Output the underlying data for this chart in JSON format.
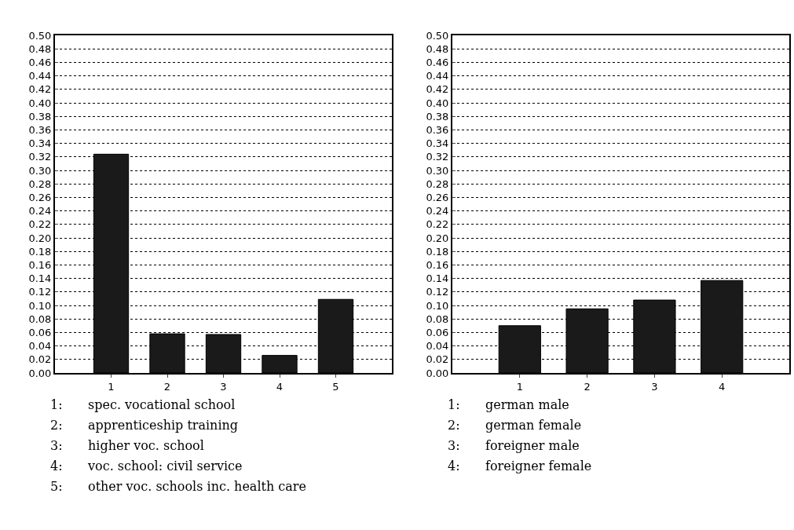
{
  "chart_data": [
    {
      "type": "bar",
      "categories": [
        "1",
        "2",
        "3",
        "4",
        "5"
      ],
      "values": [
        0.324,
        0.058,
        0.057,
        0.026,
        0.109
      ],
      "color": "#1a1a1a",
      "ylim": [
        0,
        0.5
      ],
      "yticks": [
        {
          "value": 0,
          "label": "0.00"
        },
        {
          "value": 0.02,
          "label": "0.02"
        },
        {
          "value": 0.04,
          "label": "0.04"
        },
        {
          "value": 0.06,
          "label": "0.06"
        },
        {
          "value": 0.08,
          "label": "0.08"
        },
        {
          "value": 0.1,
          "label": "0.10"
        },
        {
          "value": 0.12,
          "label": "0.12"
        },
        {
          "value": 0.14,
          "label": "0.14"
        },
        {
          "value": 0.16,
          "label": "0.16"
        },
        {
          "value": 0.18,
          "label": "0.18"
        },
        {
          "value": 0.2,
          "label": "0.20"
        },
        {
          "value": 0.22,
          "label": "0.22"
        },
        {
          "value": 0.24,
          "label": "0.24"
        },
        {
          "value": 0.26,
          "label": "0.26"
        },
        {
          "value": 0.28,
          "label": "0.28"
        },
        {
          "value": 0.3,
          "label": "0.30"
        },
        {
          "value": 0.32,
          "label": "0.32"
        },
        {
          "value": 0.34,
          "label": "0.34"
        },
        {
          "value": 0.36,
          "label": "0.36"
        },
        {
          "value": 0.38,
          "label": "0.38"
        },
        {
          "value": 0.4,
          "label": "0.40"
        },
        {
          "value": 0.42,
          "label": "0.42"
        },
        {
          "value": 0.44,
          "label": "0.44"
        },
        {
          "value": 0.46,
          "label": "0.46"
        },
        {
          "value": 0.48,
          "label": "0.48"
        },
        {
          "value": 0.5,
          "label": "0.50"
        }
      ],
      "grid": "y",
      "line_style": "dotted",
      "annotations": [
        "1:\tspec. vocational school",
        "2:\tapprenticeship training",
        "3:\thigher voc. school",
        "4:\tvoc. school: civil service",
        "5:\tother voc. schools inc. health care"
      ]
    },
    {
      "type": "bar",
      "categories": [
        "1",
        "2",
        "3",
        "4"
      ],
      "values": [
        0.07,
        0.095,
        0.108,
        0.137
      ],
      "color": "#1a1a1a",
      "ylim": [
        0,
        0.5
      ],
      "yticks": [
        {
          "value": 0,
          "label": "0.00"
        },
        {
          "value": 0.02,
          "label": "0.02"
        },
        {
          "value": 0.04,
          "label": "0.04"
        },
        {
          "value": 0.06,
          "label": "0.06"
        },
        {
          "value": 0.08,
          "label": "0.08"
        },
        {
          "value": 0.1,
          "label": "0.10"
        },
        {
          "value": 0.12,
          "label": "0.12"
        },
        {
          "value": 0.14,
          "label": "0.14"
        },
        {
          "value": 0.16,
          "label": "0.16"
        },
        {
          "value": 0.18,
          "label": "0.18"
        },
        {
          "value": 0.2,
          "label": "0.20"
        },
        {
          "value": 0.22,
          "label": "0.22"
        },
        {
          "value": 0.24,
          "label": "0.24"
        },
        {
          "value": 0.26,
          "label": "0.26"
        },
        {
          "value": 0.28,
          "label": "0.28"
        },
        {
          "value": 0.3,
          "label": "0.30"
        },
        {
          "value": 0.32,
          "label": "0.32"
        },
        {
          "value": 0.34,
          "label": "0.34"
        },
        {
          "value": 0.36,
          "label": "0.36"
        },
        {
          "value": 0.38,
          "label": "0.38"
        },
        {
          "value": 0.4,
          "label": "0.40"
        },
        {
          "value": 0.42,
          "label": "0.42"
        },
        {
          "value": 0.44,
          "label": "0.44"
        },
        {
          "value": 0.46,
          "label": "0.46"
        },
        {
          "value": 0.48,
          "label": "0.48"
        },
        {
          "value": 0.5,
          "label": "0.50"
        }
      ],
      "grid": "y",
      "line_style": "dotted",
      "annotations": [
        "1:\tgerman male",
        "2:\tgerman female",
        "3:\tforeigner male",
        "4:\tforeigner female"
      ]
    }
  ]
}
